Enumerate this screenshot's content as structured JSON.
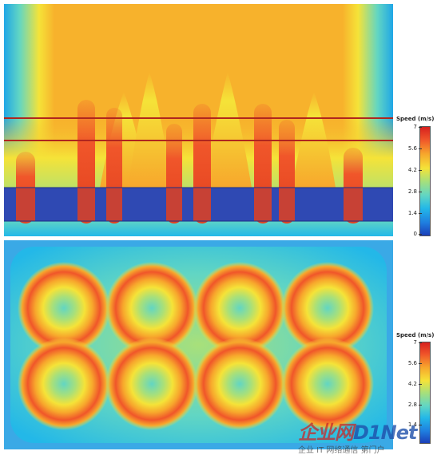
{
  "legend_top": {
    "title": "Speed (m/s)",
    "ticks": [
      "7",
      "5.6",
      "4.2",
      "2.8",
      "1.4",
      "0"
    ]
  },
  "legend_bottom": {
    "title": "Speed (m/s)",
    "ticks": [
      "7",
      "5.6",
      "4.2",
      "2.8",
      "1.4"
    ]
  },
  "watermark": {
    "logo_text": "企业网",
    "logo_brand": "D1Net",
    "subtitle": "企业 IT 网络通信 第门户"
  },
  "colors": {
    "scale_low": "#1b3fb8",
    "scale_mid": "#f5e338",
    "scale_high": "#d7201e",
    "rack_blue": "#2f49b3",
    "marker_line": "#b0261e"
  }
}
